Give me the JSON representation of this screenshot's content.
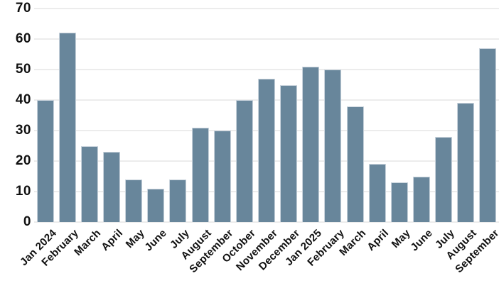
{
  "chart_data": {
    "type": "bar",
    "title": "",
    "xlabel": "",
    "ylabel": "",
    "categories": [
      "Jan 2024",
      "February",
      "March",
      "April",
      "May",
      "June",
      "July",
      "August",
      "September",
      "October",
      "November",
      "December",
      "Jan 2025",
      "February",
      "March",
      "April",
      "May",
      "June",
      "July",
      "August",
      "September"
    ],
    "values": [
      40,
      62,
      25,
      23,
      14,
      11,
      14,
      31,
      30,
      40,
      47,
      45,
      51,
      50,
      38,
      19,
      13,
      15,
      28,
      39,
      57
    ],
    "ylim": [
      0,
      70
    ],
    "ytick_step": 10,
    "yticks": [
      0,
      10,
      20,
      30,
      40,
      50,
      60,
      70
    ],
    "grid": "horizontal",
    "legend": "none",
    "x_label_rotation_deg": -45,
    "colors": {
      "bar_fill": "#68869b",
      "bar_border": "#c9d3dc",
      "gridline": "#ececec",
      "tick_text": "#111111",
      "background": "#ffffff"
    }
  }
}
